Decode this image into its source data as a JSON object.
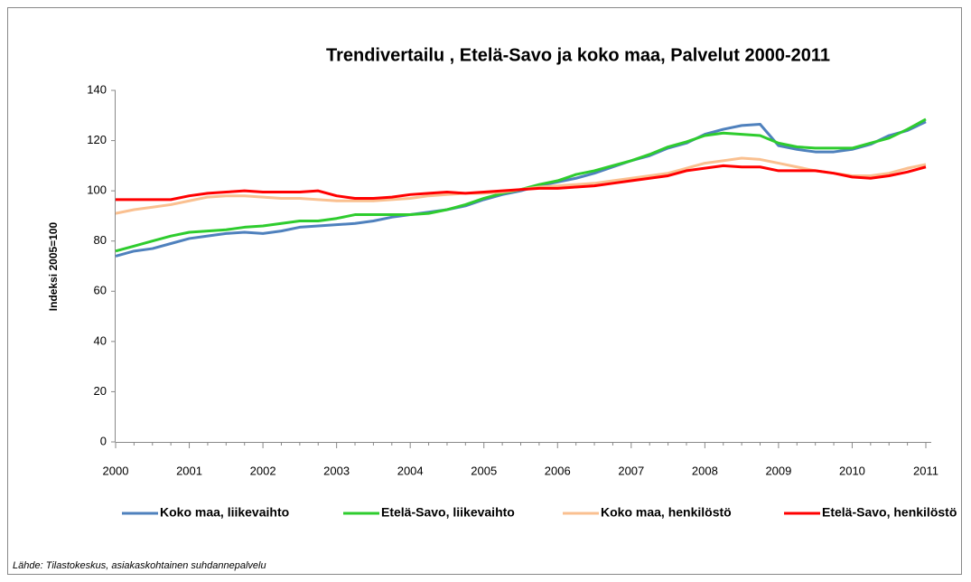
{
  "chart_data": {
    "type": "line",
    "title": "Trendivertailu , Etelä-Savo ja koko maa, Palvelut 2000-2011",
    "y_label": "Indeksi 2005=100",
    "source": "Lähde: Tilastokeskus, asiakaskohtainen suhdannepalvelu",
    "categories": [
      "2000",
      null,
      null,
      null,
      "2001",
      null,
      null,
      null,
      "2002",
      null,
      null,
      null,
      "2003",
      null,
      null,
      null,
      "2004",
      null,
      null,
      null,
      "2005",
      null,
      null,
      null,
      "2006",
      null,
      null,
      null,
      "2007",
      null,
      null,
      null,
      "2008",
      null,
      null,
      null,
      "2009",
      null,
      null,
      null,
      "2010",
      null,
      null,
      null,
      "2011"
    ],
    "ylim": [
      0,
      140
    ],
    "yticks": [
      0,
      20,
      40,
      60,
      80,
      100,
      120,
      140
    ],
    "legend": "bottom",
    "series": [
      {
        "name": "Koko maa, liikevaihto",
        "color": "#4f81bd",
        "values": [
          74,
          76,
          77,
          79,
          81,
          82,
          83,
          83.5,
          83,
          84,
          85.5,
          86,
          86.5,
          87,
          88,
          89.5,
          90.5,
          91.5,
          92.5,
          94,
          96.5,
          98.5,
          100,
          102,
          103.5,
          105,
          107,
          109.5,
          112,
          114,
          117,
          119,
          122.5,
          124.5,
          126,
          126.5,
          118,
          116.5,
          115.5,
          115.5,
          116.5,
          118.5,
          122,
          124,
          127.5
        ]
      },
      {
        "name": "Etelä-Savo, liikevaihto",
        "color": "#2ecc2e",
        "values": [
          76,
          78,
          80,
          82,
          83.5,
          84,
          84.5,
          85.5,
          86,
          87,
          88,
          88,
          89,
          90.5,
          90.5,
          90.5,
          90.5,
          91,
          92.5,
          94.5,
          97,
          99,
          100.5,
          102.5,
          104,
          106.5,
          108,
          110,
          112,
          114.5,
          117.5,
          119.5,
          122,
          123,
          122.5,
          122,
          119,
          117.5,
          117,
          117,
          117,
          119,
          121,
          124.5,
          128.5
        ]
      },
      {
        "name": "Koko maa, henkilöstö",
        "color": "#fac090",
        "values": [
          91,
          92.5,
          93.5,
          94.5,
          96,
          97.5,
          98,
          98,
          97.5,
          97,
          97,
          96.5,
          96,
          96,
          96,
          96.5,
          97,
          98,
          98.5,
          99,
          99,
          99.5,
          100.5,
          101.5,
          102,
          102.5,
          103,
          104,
          105,
          106,
          107,
          109,
          111,
          112,
          113,
          112.5,
          111,
          109.5,
          108,
          107,
          106,
          106,
          107,
          109,
          110.5
        ]
      },
      {
        "name": "Etelä-Savo, henkilöstö",
        "color": "#ff0000",
        "values": [
          96.5,
          96.5,
          96.5,
          96.5,
          98,
          99,
          99.5,
          100,
          99.5,
          99.5,
          99.5,
          100,
          98,
          97,
          97,
          97.5,
          98.5,
          99,
          99.5,
          99,
          99.5,
          100,
          100.5,
          101,
          101,
          101.5,
          102,
          103,
          104,
          105,
          106,
          108,
          109,
          110,
          109.5,
          109.5,
          108,
          108,
          108,
          107,
          105.5,
          105,
          106,
          107.5,
          109.5
        ]
      }
    ]
  }
}
